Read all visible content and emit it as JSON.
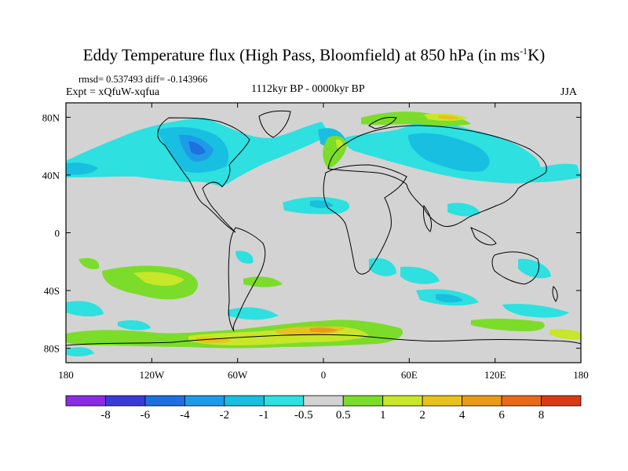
{
  "title": {
    "prefix": "Eddy Temperature flux (High Pass, Bloomfield) at 850 hPa (in ms",
    "sup": "-1",
    "suffix": "K)"
  },
  "stats": "rmsd= 0.537493 diff= -0.143966",
  "experiment": "Expt = xQfuW-xqfua",
  "period": "1112kyr BP - 0000kyr BP",
  "season": "JJA",
  "axes": {
    "x_ticks": [
      "180",
      "120W",
      "60W",
      "0",
      "60E",
      "120E",
      "180"
    ],
    "y_ticks": [
      "80N",
      "40N",
      "0",
      "40S",
      "80S"
    ]
  },
  "colorbar": {
    "colors": [
      "#8b2be2",
      "#3a3ad9",
      "#1f6fe0",
      "#1e9be8",
      "#18bfe0",
      "#2ee0e0",
      "#d3d3d3",
      "#7bdc2a",
      "#c8e62a",
      "#e8c21c",
      "#e89a18",
      "#e86a18",
      "#d83a18"
    ],
    "labels": [
      "-8",
      "-6",
      "-4",
      "-2",
      "-1",
      "-0.5",
      "0.5",
      "1",
      "2",
      "4",
      "6",
      "8"
    ]
  }
}
